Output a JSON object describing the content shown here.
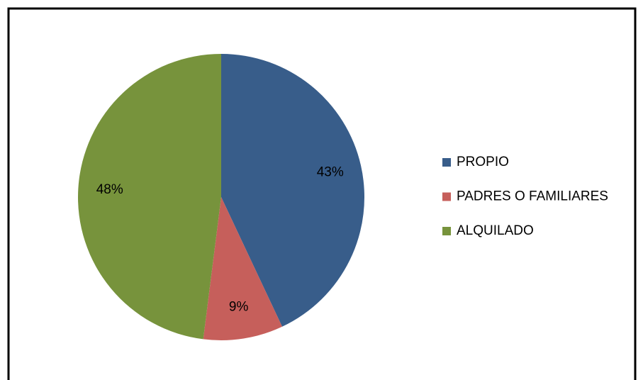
{
  "chart_data": {
    "type": "pie",
    "categories": [
      "PROPIO",
      "PADRES O FAMILIARES",
      "ALQUILADO"
    ],
    "values": [
      43,
      9,
      48
    ],
    "value_labels": [
      "43%",
      "9%",
      "48%"
    ],
    "colors": [
      "#385d8a",
      "#c65f5b",
      "#77933c"
    ],
    "legend": "right"
  }
}
